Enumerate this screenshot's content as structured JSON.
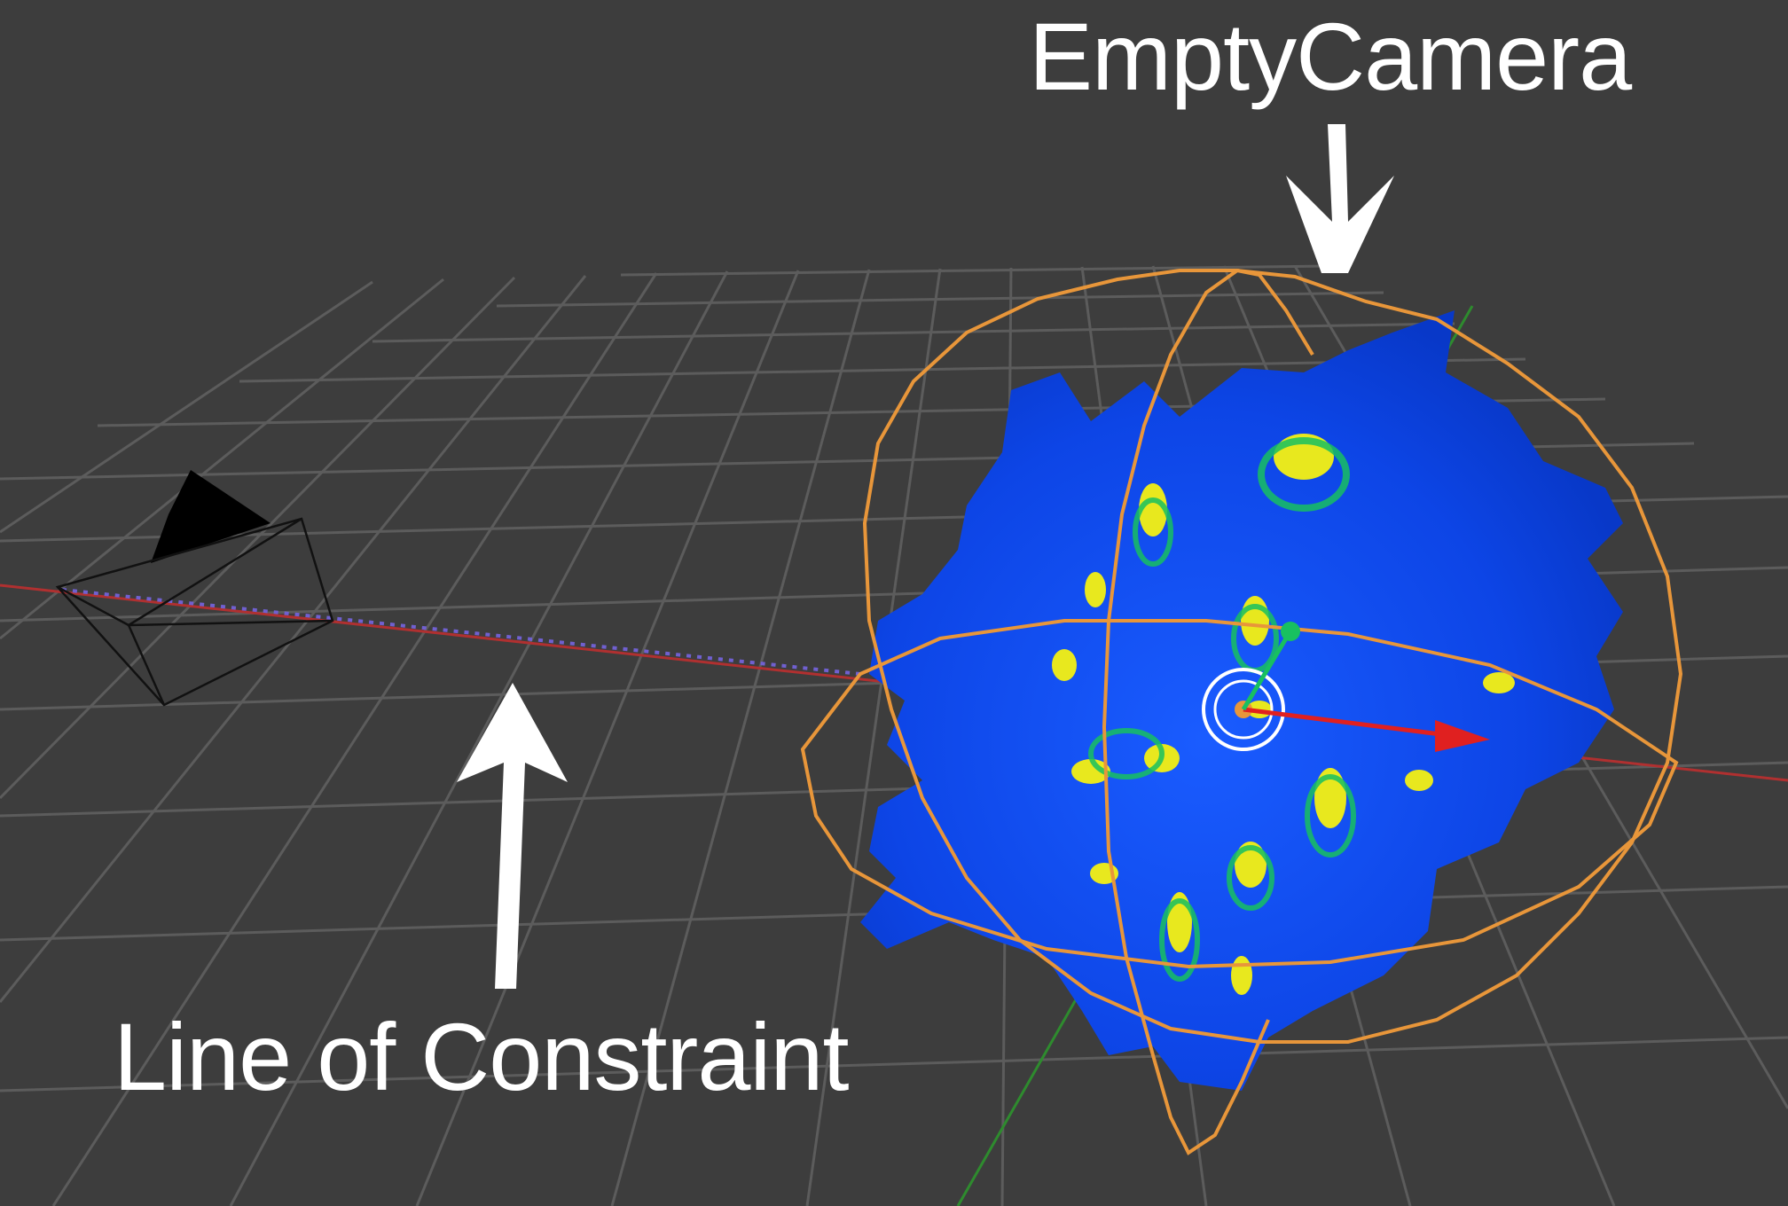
{
  "viewport": {
    "background_color": "#3d3d3d",
    "grid_color": "#5a5a5a",
    "x_axis_color": "#b03030",
    "y_axis_color": "#2e8b2e"
  },
  "annotations": {
    "empty_camera_label": "EmptyCamera",
    "line_of_constraint_label": "Line of Constraint"
  },
  "objects": {
    "camera": {
      "icon": "camera-icon",
      "color": "#000000"
    },
    "empty_sphere": {
      "icon": "sphere-empty-icon",
      "color": "#e8963a"
    },
    "mesh": {
      "palette": [
        "#0a3fd8",
        "#1a5cff",
        "#18c060",
        "#e8e81e"
      ]
    },
    "constraint_line": {
      "color": "#7060d0"
    }
  }
}
